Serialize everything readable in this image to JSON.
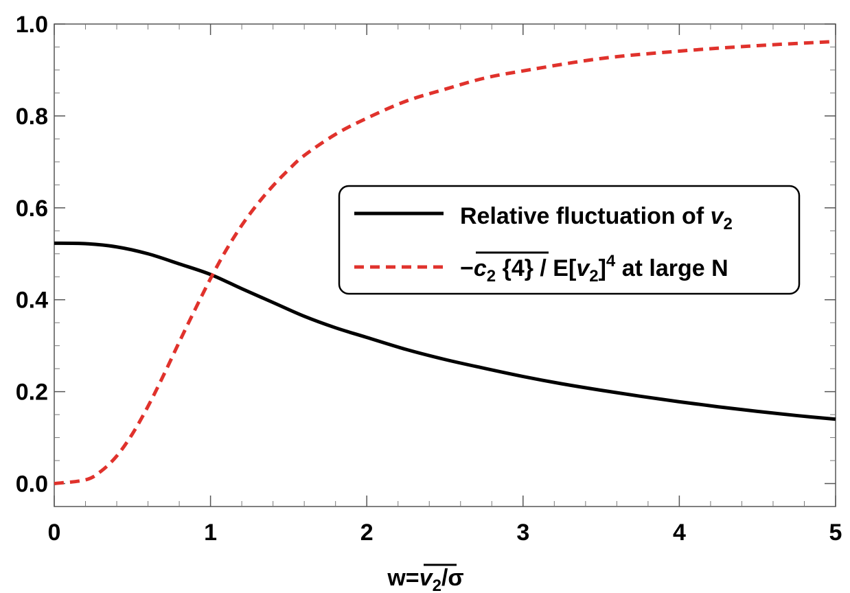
{
  "chart_data": {
    "type": "line",
    "xlabel": "w=v₂/σ",
    "xlabel_parts": {
      "prefix": "w=",
      "overlined": "v",
      "overlined_sub": "2",
      "suffix": "/σ"
    },
    "ylabel": "",
    "xlim": [
      0,
      5
    ],
    "ylim": [
      -0.05,
      1.0
    ],
    "x_ticks": [
      0,
      1,
      2,
      3,
      4,
      5
    ],
    "x_tick_labels": [
      "0",
      "1",
      "2",
      "3",
      "4",
      "5"
    ],
    "y_ticks": [
      0.0,
      0.2,
      0.4,
      0.6,
      0.8,
      1.0
    ],
    "y_tick_labels": [
      "0.0",
      "0.2",
      "0.4",
      "0.6",
      "0.8",
      "1.0"
    ],
    "grid": false,
    "legend_position": "center-right",
    "series": [
      {
        "name": "Relative fluctuation of v₂",
        "style": "solid",
        "color": "#000000",
        "x": [
          0,
          0.2,
          0.4,
          0.6,
          0.8,
          1.0,
          1.2,
          1.4,
          1.6,
          1.8,
          2.0,
          2.25,
          2.5,
          2.75,
          3.0,
          3.25,
          3.5,
          3.75,
          4.0,
          4.25,
          4.5,
          4.75,
          5.0
        ],
        "values": [
          0.523,
          0.522,
          0.515,
          0.5,
          0.478,
          0.455,
          0.424,
          0.394,
          0.364,
          0.339,
          0.318,
          0.292,
          0.27,
          0.251,
          0.233,
          0.217,
          0.203,
          0.19,
          0.178,
          0.167,
          0.157,
          0.148,
          0.14
        ]
      },
      {
        "name": "−c₂{4} / E[v₂]⁴ at large N",
        "style": "dashed",
        "color": "#e0322c",
        "x": [
          0,
          0.2,
          0.3,
          0.4,
          0.5,
          0.6,
          0.7,
          0.8,
          0.9,
          1.0,
          1.1,
          1.2,
          1.3,
          1.4,
          1.5,
          1.6,
          1.8,
          2.0,
          2.25,
          2.5,
          2.75,
          3.0,
          3.5,
          4.0,
          4.5,
          5.0
        ],
        "values": [
          0.0,
          0.008,
          0.027,
          0.06,
          0.108,
          0.168,
          0.236,
          0.308,
          0.378,
          0.446,
          0.508,
          0.562,
          0.608,
          0.648,
          0.683,
          0.714,
          0.76,
          0.795,
          0.832,
          0.858,
          0.882,
          0.898,
          0.925,
          0.941,
          0.953,
          0.962
        ]
      }
    ]
  },
  "legend": {
    "item1": {
      "prefix": "Relative fluctuation of ",
      "var": "v",
      "sub": "2"
    },
    "item2": {
      "minus": "−",
      "overlined_var": "c",
      "overlined_sub": "2",
      "overlined_arg": " {4}",
      "mid": " / E[",
      "var": "v",
      "sub": "2",
      "close": "]",
      "sup": "4",
      "suffix": " at large N"
    }
  }
}
